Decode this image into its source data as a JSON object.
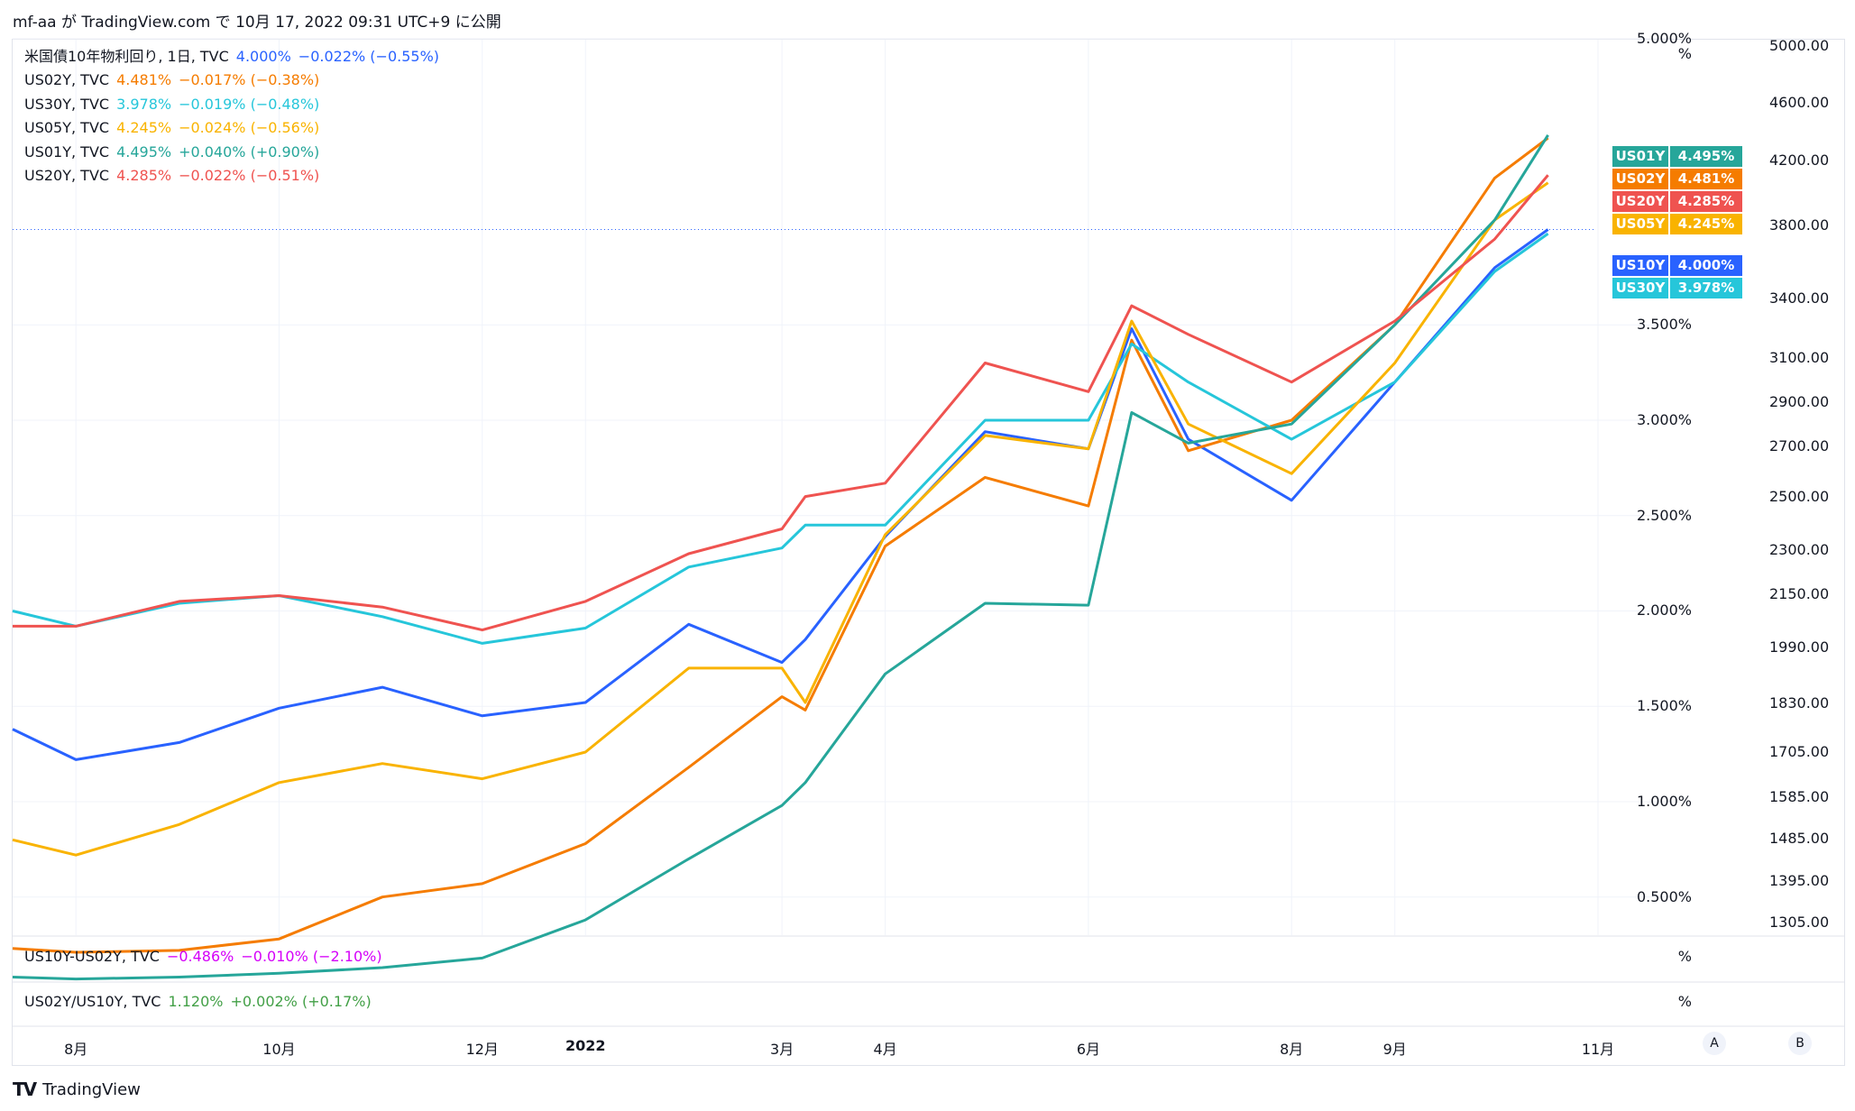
{
  "header": {
    "text": "mf-aa が TradingView.com で 10月 17, 2022 09:31 UTC+9 に公開"
  },
  "legend": [
    {
      "name": "米国債10年物利回り, 1日, TVC",
      "value": "4.000%",
      "change": "−0.022% (−0.55%)",
      "color": "#2962ff"
    },
    {
      "name": "US02Y, TVC",
      "value": "4.481%",
      "change": "−0.017% (−0.38%)",
      "color": "#f57c00"
    },
    {
      "name": "US30Y, TVC",
      "value": "3.978%",
      "change": "−0.019% (−0.48%)",
      "color": "#26c6da"
    },
    {
      "name": "US05Y, TVC",
      "value": "4.245%",
      "change": "−0.024% (−0.56%)",
      "color": "#f9b300"
    },
    {
      "name": "US01Y, TVC",
      "value": "4.495%",
      "change": "+0.040% (+0.90%)",
      "color": "#26a69a"
    },
    {
      "name": "US20Y, TVC",
      "value": "4.285%",
      "change": "−0.022% (−0.51%)",
      "color": "#ef5350"
    }
  ],
  "panes": [
    {
      "name": "US10Y-US02Y, TVC",
      "value": "−0.486%",
      "change": "−0.010% (−2.10%)",
      "color": "#d500f9",
      "unit": "%"
    },
    {
      "name": "US02Y/US10Y, TVC",
      "value": "1.120%",
      "change": "+0.002% (+0.17%)",
      "color": "#43a047",
      "unit": "%"
    }
  ],
  "axis": {
    "pct_unit": "%",
    "pct_ticks": [
      "5.000%",
      "3.500%",
      "3.000%",
      "2.500%",
      "2.000%",
      "1.500%",
      "1.000%",
      "0.500%"
    ],
    "right_ticks": [
      "5000.00",
      "4600.00",
      "4200.00",
      "3800.00",
      "3400.00",
      "3100.00",
      "2900.00",
      "2700.00",
      "2500.00",
      "2300.00",
      "2150.00",
      "1990.00",
      "1830.00",
      "1705.00",
      "1585.00",
      "1485.00",
      "1395.00",
      "1305.00"
    ],
    "x_ticks": [
      {
        "label": "8月",
        "bold": false
      },
      {
        "label": "10月",
        "bold": false
      },
      {
        "label": "12月",
        "bold": false
      },
      {
        "label": "2022",
        "bold": true
      },
      {
        "label": "3月",
        "bold": false
      },
      {
        "label": "4月",
        "bold": false
      },
      {
        "label": "6月",
        "bold": false
      },
      {
        "label": "8月",
        "bold": false
      },
      {
        "label": "9月",
        "bold": false
      },
      {
        "label": "11月",
        "bold": false
      }
    ],
    "scale_buttons": [
      "A",
      "B"
    ]
  },
  "badges": [
    {
      "name": "US01Y",
      "value": "4.495%",
      "color": "#26a69a"
    },
    {
      "name": "US02Y",
      "value": "4.481%",
      "color": "#f57c00"
    },
    {
      "name": "US20Y",
      "value": "4.285%",
      "color": "#ef5350"
    },
    {
      "name": "US05Y",
      "value": "4.245%",
      "color": "#f9b300"
    },
    {
      "name": "US10Y",
      "value": "4.000%",
      "color": "#2962ff"
    },
    {
      "name": "US30Y",
      "value": "3.978%",
      "color": "#26c6da"
    }
  ],
  "footer": {
    "brand": "TradingView",
    "logo": "TV"
  },
  "chart_data": {
    "type": "line",
    "x": [
      "2021-07-13",
      "2021-08-01",
      "2021-09-01",
      "2021-10-01",
      "2021-11-01",
      "2021-12-01",
      "2022-01-01",
      "2022-02-01",
      "2022-03-01",
      "2022-03-08",
      "2022-04-01",
      "2022-05-01",
      "2022-06-01",
      "2022-06-14",
      "2022-07-01",
      "2022-08-01",
      "2022-09-01",
      "2022-10-01",
      "2022-10-17"
    ],
    "series": [
      {
        "name": "US10Y",
        "color": "#2962ff",
        "values": [
          1.38,
          1.22,
          1.31,
          1.49,
          1.6,
          1.45,
          1.52,
          1.93,
          1.73,
          1.85,
          2.39,
          2.94,
          2.85,
          3.48,
          2.9,
          2.58,
          3.2,
          3.8,
          4.0
        ]
      },
      {
        "name": "US02Y",
        "color": "#f57c00",
        "values": [
          0.23,
          0.21,
          0.22,
          0.28,
          0.5,
          0.57,
          0.78,
          1.18,
          1.55,
          1.48,
          2.34,
          2.7,
          2.55,
          3.42,
          2.84,
          3.0,
          3.5,
          4.27,
          4.48
        ]
      },
      {
        "name": "US30Y",
        "color": "#26c6da",
        "values": [
          2.0,
          1.92,
          2.04,
          2.08,
          1.97,
          1.83,
          1.91,
          2.23,
          2.33,
          2.45,
          2.45,
          3.0,
          3.0,
          3.4,
          3.2,
          2.9,
          3.2,
          3.78,
          3.978
        ]
      },
      {
        "name": "US05Y",
        "color": "#f9b300",
        "values": [
          0.8,
          0.72,
          0.88,
          1.1,
          1.2,
          1.12,
          1.26,
          1.7,
          1.7,
          1.52,
          2.4,
          2.92,
          2.85,
          3.52,
          2.98,
          2.72,
          3.3,
          4.05,
          4.245
        ]
      },
      {
        "name": "US01Y",
        "color": "#26a69a",
        "values": [
          0.08,
          0.07,
          0.08,
          0.1,
          0.13,
          0.18,
          0.38,
          0.7,
          0.98,
          1.1,
          1.67,
          2.04,
          2.03,
          3.04,
          2.88,
          2.98,
          3.5,
          4.05,
          4.495
        ]
      },
      {
        "name": "US20Y",
        "color": "#ef5350",
        "values": [
          1.92,
          1.92,
          2.05,
          2.08,
          2.02,
          1.9,
          2.05,
          2.3,
          2.43,
          2.6,
          2.67,
          3.3,
          3.15,
          3.6,
          3.45,
          3.2,
          3.52,
          3.95,
          4.285
        ]
      }
    ],
    "ylim": [
      0.3,
      5.0
    ],
    "y_ticks": [
      0.5,
      1.0,
      1.5,
      2.0,
      2.5,
      3.0,
      3.5,
      5.0
    ],
    "reference_line": 4.0,
    "grid": true,
    "legend_position": "top-left"
  }
}
